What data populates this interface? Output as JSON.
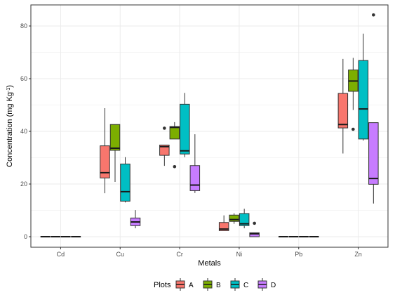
{
  "chart_data": {
    "type": "boxplot",
    "xlabel": "Metals",
    "ylabel_main": "Concentration (mg Kg",
    "ylabel_sup": "-1",
    "ylabel_close": ")",
    "categories": [
      "Cd",
      "Cu",
      "Cr",
      "Ni",
      "Pb",
      "Zn"
    ],
    "y_ticks": [
      "0",
      "20",
      "40",
      "60",
      "80"
    ],
    "ylim": [
      -4,
      88
    ],
    "grid": true,
    "legend": {
      "title": "Plots",
      "placement": "bottom",
      "entries": [
        "A",
        "B",
        "C",
        "D"
      ]
    },
    "colors": {
      "A": "#F8766D",
      "B": "#7CAE00",
      "C": "#00BFC4",
      "D": "#C77CFF",
      "grid": "#ebebeb",
      "box_line": "#333333",
      "median": "#1a1a1a"
    },
    "series": [
      {
        "group": "A",
        "boxes": [
          {
            "category": "Cd",
            "min": 0,
            "q1": 0,
            "median": 0,
            "q3": 0,
            "max": 0,
            "outliers": []
          },
          {
            "category": "Cu",
            "min": 16.5,
            "q1": 22.3,
            "median": 24.3,
            "q3": 34.5,
            "max": 48.8,
            "outliers": []
          },
          {
            "category": "Cr",
            "min": 26.9,
            "q1": 30.9,
            "median": 34.2,
            "q3": 34.8,
            "max": 34.8,
            "outliers": [
              41.2
            ]
          },
          {
            "category": "Ni",
            "min": 2.3,
            "q1": 2.3,
            "median": 2.9,
            "q3": 5.4,
            "max": 8.1,
            "outliers": []
          },
          {
            "category": "Pb",
            "min": 0,
            "q1": 0,
            "median": 0,
            "q3": 0,
            "max": 0,
            "outliers": []
          },
          {
            "category": "Zn",
            "min": 31.6,
            "q1": 41.3,
            "median": 42.6,
            "q3": 54.4,
            "max": 67.5,
            "outliers": []
          }
        ]
      },
      {
        "group": "B",
        "boxes": [
          {
            "category": "Cd",
            "min": 0,
            "q1": 0,
            "median": 0,
            "q3": 0,
            "max": 0,
            "outliers": []
          },
          {
            "category": "Cu",
            "min": 20.8,
            "q1": 32.8,
            "median": 33.6,
            "q3": 42.6,
            "max": 42.6,
            "outliers": []
          },
          {
            "category": "Cr",
            "min": 37.1,
            "q1": 37.1,
            "median": 41.5,
            "q3": 41.8,
            "max": 43.5,
            "outliers": [
              26.6
            ]
          },
          {
            "category": "Ni",
            "min": 4.9,
            "q1": 5.8,
            "median": 6.5,
            "q3": 8.2,
            "max": 8.9,
            "outliers": []
          },
          {
            "category": "Pb",
            "min": 0,
            "q1": 0,
            "median": 0,
            "q3": 0,
            "max": 0,
            "outliers": []
          },
          {
            "category": "Zn",
            "min": 48.1,
            "q1": 55.2,
            "median": 59.1,
            "q3": 63.3,
            "max": 67.9,
            "outliers": [
              40.8
            ]
          }
        ]
      },
      {
        "group": "C",
        "boxes": [
          {
            "category": "Cd",
            "min": 0,
            "q1": 0,
            "median": 0,
            "q3": 0,
            "max": 0,
            "outliers": []
          },
          {
            "category": "Cu",
            "min": 13.0,
            "q1": 13.5,
            "median": 17.1,
            "q3": 27.6,
            "max": 30.2,
            "outliers": []
          },
          {
            "category": "Cr",
            "min": 30.2,
            "q1": 31.4,
            "median": 32.6,
            "q3": 50.3,
            "max": 54.6,
            "outliers": []
          },
          {
            "category": "Ni",
            "min": 3.2,
            "q1": 4.2,
            "median": 4.9,
            "q3": 8.8,
            "max": 10.6,
            "outliers": []
          },
          {
            "category": "Pb",
            "min": 0,
            "q1": 0,
            "median": 0,
            "q3": 0,
            "max": 0,
            "outliers": []
          },
          {
            "category": "Zn",
            "min": 36.5,
            "q1": 37.1,
            "median": 48.5,
            "q3": 66.9,
            "max": 77.1,
            "outliers": []
          }
        ]
      },
      {
        "group": "D",
        "boxes": [
          {
            "category": "Cd",
            "min": 0,
            "q1": 0,
            "median": 0,
            "q3": 0,
            "max": 0,
            "outliers": []
          },
          {
            "category": "Cu",
            "min": 3.2,
            "q1": 4.2,
            "median": 5.6,
            "q3": 7.1,
            "max": 10.1,
            "outliers": []
          },
          {
            "category": "Cr",
            "min": 16.6,
            "q1": 17.5,
            "median": 19.6,
            "q3": 27.0,
            "max": 38.9,
            "outliers": []
          },
          {
            "category": "Ni",
            "min": 0,
            "q1": 0,
            "median": 1.1,
            "q3": 1.5,
            "max": 1.5,
            "outliers": [
              5.1
            ]
          },
          {
            "category": "Pb",
            "min": 0,
            "q1": 0,
            "median": 0,
            "q3": 0,
            "max": 0,
            "outliers": []
          },
          {
            "category": "Zn",
            "min": 12.6,
            "q1": 19.9,
            "median": 22.1,
            "q3": 43.3,
            "max": 43.3,
            "outliers": [
              84.2
            ]
          }
        ]
      }
    ]
  }
}
